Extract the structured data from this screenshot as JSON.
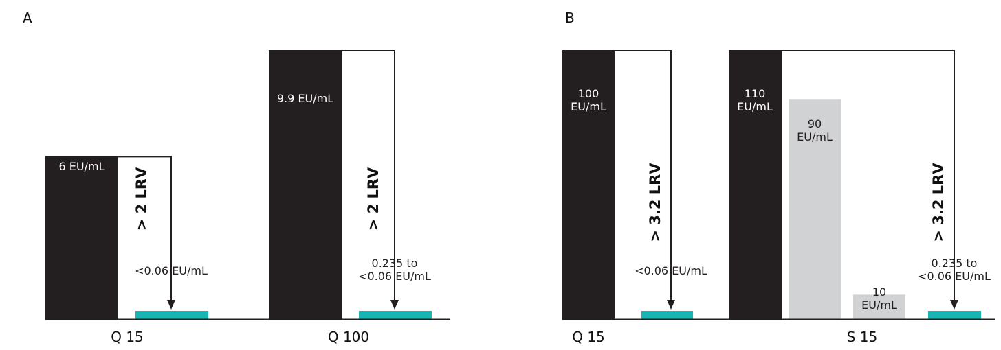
{
  "colors": {
    "feed": "#231f20",
    "permeate": "#19b5b3",
    "intermediate": "#d1d2d4",
    "axis": "#231f20",
    "white_text": "#ffffff",
    "dark_text": "#231f20"
  },
  "chart_data": [
    {
      "panel": "A",
      "type": "bar",
      "groups": [
        {
          "category": "Q 15",
          "bars": [
            {
              "kind": "feed",
              "value": 6,
              "label": "6 EU/mL"
            },
            {
              "kind": "permeate",
              "value": 0.06,
              "label": "<0.06 EU/mL"
            }
          ],
          "lrv": "> 2 LRV"
        },
        {
          "category": "Q 100",
          "bars": [
            {
              "kind": "feed",
              "value": 9.9,
              "label": "9.9 EU/mL"
            },
            {
              "kind": "permeate",
              "value": 0.06,
              "label_lines": [
                "0.235 to",
                "<0.06 EU/mL"
              ]
            }
          ],
          "lrv": "> 2 LRV"
        }
      ]
    },
    {
      "panel": "B",
      "type": "bar",
      "groups": [
        {
          "category": "Q 15",
          "bars": [
            {
              "kind": "feed",
              "value": 100,
              "label_lines": [
                "100",
                "EU/mL"
              ]
            },
            {
              "kind": "permeate",
              "value": 0.06,
              "label": "<0.06 EU/mL"
            }
          ],
          "lrv": "> 3.2 LRV"
        },
        {
          "category": "S 15",
          "bars": [
            {
              "kind": "feed",
              "value": 110,
              "label_lines": [
                "110",
                "EU/mL"
              ]
            },
            {
              "kind": "intermediate",
              "value": 90,
              "label_lines": [
                "90",
                "EU/mL"
              ]
            },
            {
              "kind": "intermediate",
              "value": 10,
              "label_lines": [
                "10",
                "EU/mL"
              ]
            },
            {
              "kind": "permeate",
              "value": 0.06,
              "label_lines": [
                "0.235 to",
                "<0.06 EU/mL"
              ]
            }
          ],
          "lrv": "> 3.2 LRV"
        }
      ]
    }
  ]
}
